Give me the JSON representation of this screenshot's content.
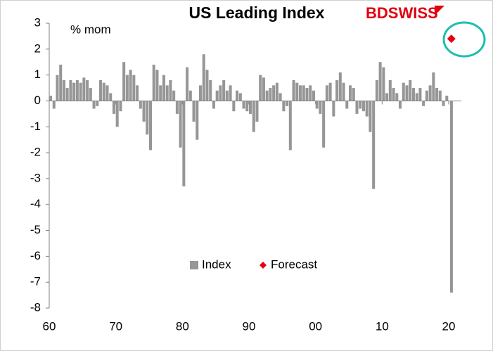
{
  "chart_data": {
    "type": "bar",
    "title": "US Leading Index",
    "subtitle": "% mom",
    "brand": "BDSWISS",
    "xlim": [
      1960,
      2021.9
    ],
    "xticks": [
      {
        "value": 1960,
        "label": "60"
      },
      {
        "value": 1970,
        "label": "70"
      },
      {
        "value": 1980,
        "label": "80"
      },
      {
        "value": 1990,
        "label": "90"
      },
      {
        "value": 2000,
        "label": "00"
      },
      {
        "value": 2010,
        "label": "10"
      },
      {
        "value": 2020,
        "label": "20"
      }
    ],
    "ylim": [
      -8,
      3
    ],
    "yticks": [
      -8,
      -7,
      -6,
      -5,
      -4,
      -3,
      -2,
      -1,
      0,
      1,
      2,
      3
    ],
    "grid": false,
    "legend": "bottom",
    "series": [
      {
        "name": "Index",
        "color": "#969696",
        "type": "bar",
        "x": [
          1960,
          1960.5,
          1961,
          1961.5,
          1962,
          1962.5,
          1963,
          1963.5,
          1964,
          1964.5,
          1965,
          1965.5,
          1966,
          1966.5,
          1967,
          1967.5,
          1968,
          1968.5,
          1969,
          1969.5,
          1970,
          1970.5,
          1971,
          1971.5,
          1972,
          1972.5,
          1973,
          1973.5,
          1974,
          1974.5,
          1975,
          1975.5,
          1976,
          1976.5,
          1977,
          1977.5,
          1978,
          1978.5,
          1979,
          1979.5,
          1980,
          1980.5,
          1981,
          1981.5,
          1982,
          1982.5,
          1983,
          1983.5,
          1984,
          1984.5,
          1985,
          1985.5,
          1986,
          1986.5,
          1987,
          1987.5,
          1988,
          1988.5,
          1989,
          1989.5,
          1990,
          1990.5,
          1991,
          1991.5,
          1992,
          1992.5,
          1993,
          1993.5,
          1994,
          1994.5,
          1995,
          1995.5,
          1996,
          1996.5,
          1997,
          1997.5,
          1998,
          1998.5,
          1999,
          1999.5,
          2000,
          2000.5,
          2001,
          2001.5,
          2002,
          2002.5,
          2003,
          2003.5,
          2004,
          2004.5,
          2005,
          2005.5,
          2006,
          2006.5,
          2007,
          2007.5,
          2008,
          2008.5,
          2009,
          2009.5,
          2010,
          2010.5,
          2011,
          2011.5,
          2012,
          2012.5,
          2013,
          2013.5,
          2014,
          2014.5,
          2015,
          2015.5,
          2016,
          2016.5,
          2017,
          2017.5,
          2018,
          2018.5,
          2019,
          2019.5,
          2020.2
        ],
        "values": [
          0.2,
          -0.3,
          1.0,
          1.4,
          0.8,
          0.5,
          0.8,
          0.7,
          0.8,
          0.7,
          0.9,
          0.8,
          0.5,
          -0.3,
          -0.2,
          0.8,
          0.7,
          0.6,
          0.3,
          -0.5,
          -1.0,
          -0.4,
          1.5,
          1.0,
          1.2,
          1.0,
          0.6,
          -0.3,
          -0.8,
          -1.3,
          -1.9,
          1.4,
          1.2,
          0.6,
          1.0,
          0.6,
          0.8,
          0.4,
          -0.5,
          -1.8,
          -3.3,
          1.3,
          0.4,
          -0.8,
          -1.5,
          0.6,
          1.8,
          1.2,
          0.8,
          -0.3,
          0.4,
          0.6,
          0.8,
          0.4,
          0.6,
          -0.4,
          0.4,
          0.3,
          -0.3,
          -0.4,
          -0.5,
          -1.2,
          -0.8,
          1.0,
          0.9,
          0.4,
          0.5,
          0.6,
          0.7,
          0.3,
          -0.4,
          -0.2,
          -1.9,
          0.8,
          0.7,
          0.6,
          0.6,
          0.5,
          0.6,
          0.4,
          -0.3,
          -0.5,
          -1.8,
          0.6,
          0.7,
          -0.6,
          0.8,
          1.1,
          0.7,
          -0.3,
          0.6,
          0.5,
          -0.5,
          -0.3,
          -0.4,
          -0.6,
          -1.2,
          -3.4,
          0.8,
          1.5,
          1.3,
          0.3,
          0.8,
          0.5,
          0.3,
          -0.3,
          0.7,
          0.6,
          0.8,
          0.5,
          0.3,
          0.5,
          -0.2,
          0.4,
          0.6,
          1.1,
          0.5,
          0.4,
          -0.2,
          0.2,
          -7.4
        ]
      },
      {
        "name": "Forecast",
        "color": "#e3000f",
        "type": "scatter",
        "x": [
          2020.4
        ],
        "values": [
          2.4
        ]
      }
    ]
  }
}
